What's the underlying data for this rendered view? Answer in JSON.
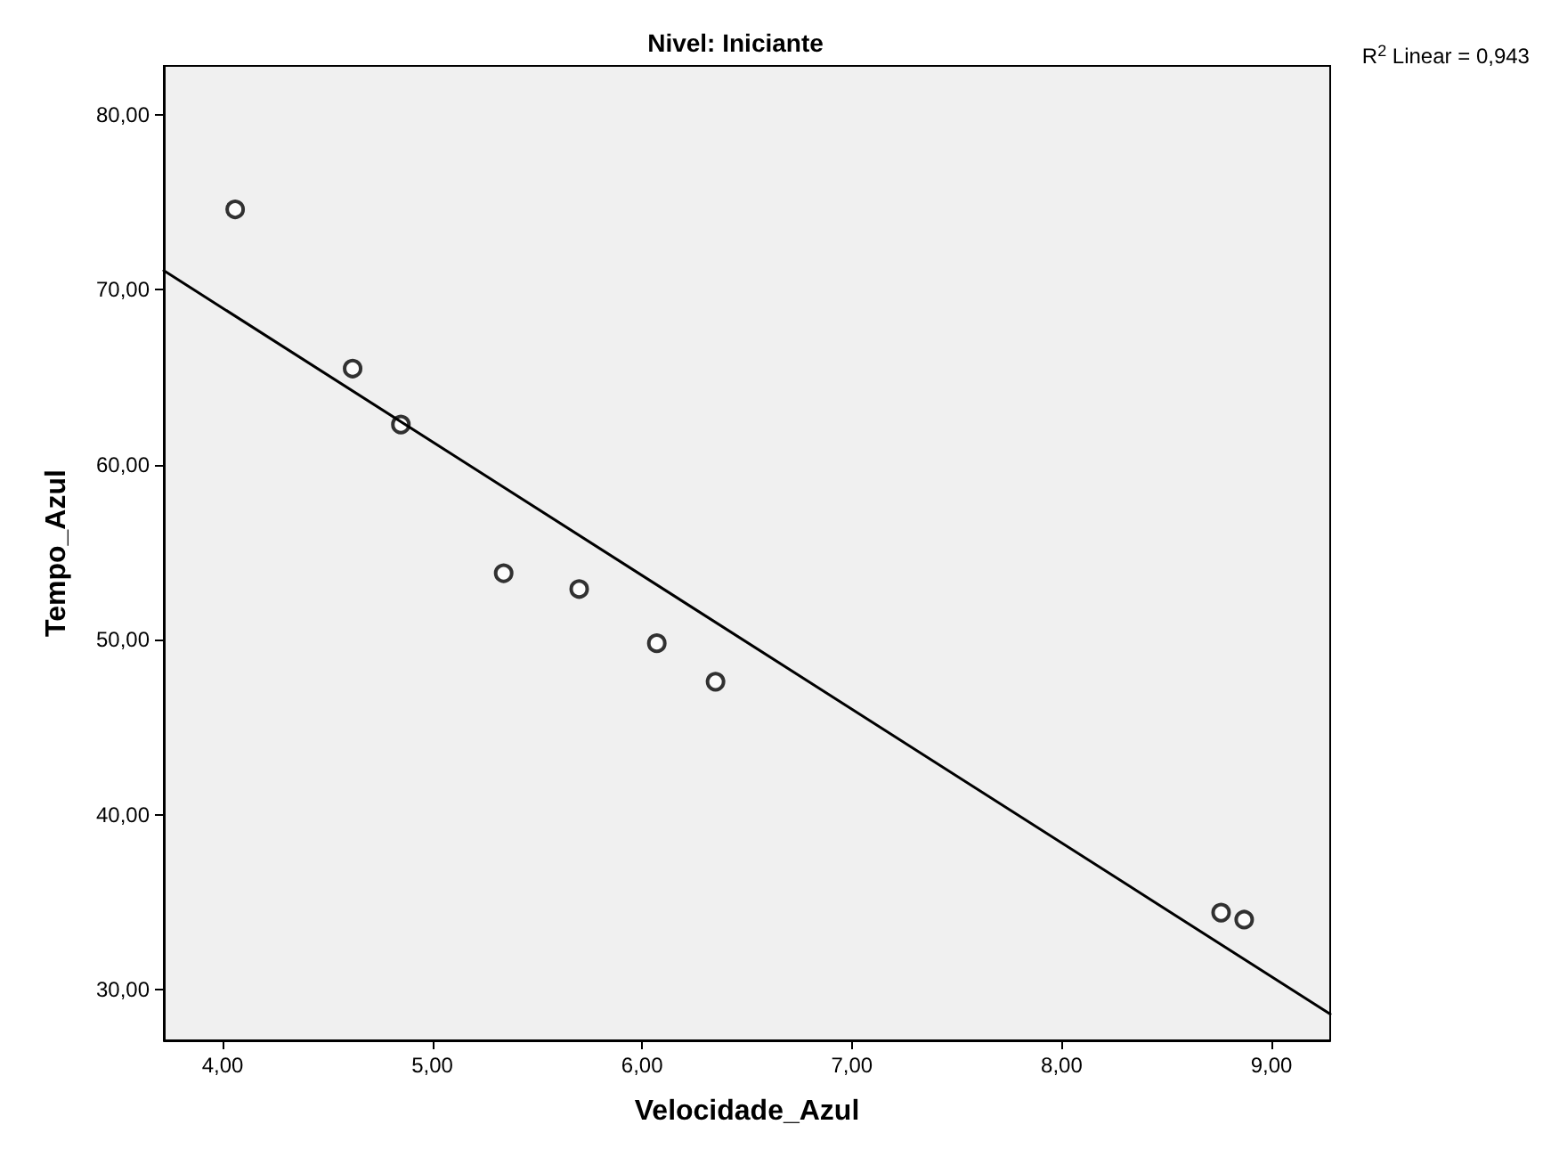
{
  "chart_data": {
    "type": "scatter",
    "title": "Nivel: Iniciante",
    "xlabel": "Velocidade_Azul",
    "ylabel": "Tempo_Azul",
    "x": [
      4.06,
      4.62,
      4.85,
      5.34,
      5.7,
      6.07,
      6.35,
      8.76,
      8.87
    ],
    "series": [
      {
        "color": "#000000",
        "marker": "circle",
        "values": [
          74.6,
          65.5,
          62.3,
          53.8,
          52.9,
          49.8,
          47.6,
          34.4,
          34.0
        ]
      },
      {
        "type": "line",
        "color": "#000000",
        "marker": "none",
        "x": [
          3.72,
          9.28
        ],
        "values": [
          71.1,
          28.6
        ]
      }
    ],
    "xlim": [
      3.72,
      9.28
    ],
    "ylim": [
      27.1,
      82.8
    ],
    "xticks": [
      {
        "value": 4,
        "label": "4,00"
      },
      {
        "value": 5,
        "label": "5,00"
      },
      {
        "value": 6,
        "label": "6,00"
      },
      {
        "value": 7,
        "label": "7,00"
      },
      {
        "value": 8,
        "label": "8,00"
      },
      {
        "value": 9,
        "label": "9,00"
      }
    ],
    "yticks": [
      {
        "value": 30,
        "label": "30,00"
      },
      {
        "value": 40,
        "label": "40,00"
      },
      {
        "value": 50,
        "label": "50,00"
      },
      {
        "value": 60,
        "label": "60,00"
      },
      {
        "value": 70,
        "label": "70,00"
      },
      {
        "value": 80,
        "label": "80,00"
      }
    ],
    "grid": false,
    "annotations": [
      "R$^{2}$ Linear = 0,943"
    ]
  }
}
